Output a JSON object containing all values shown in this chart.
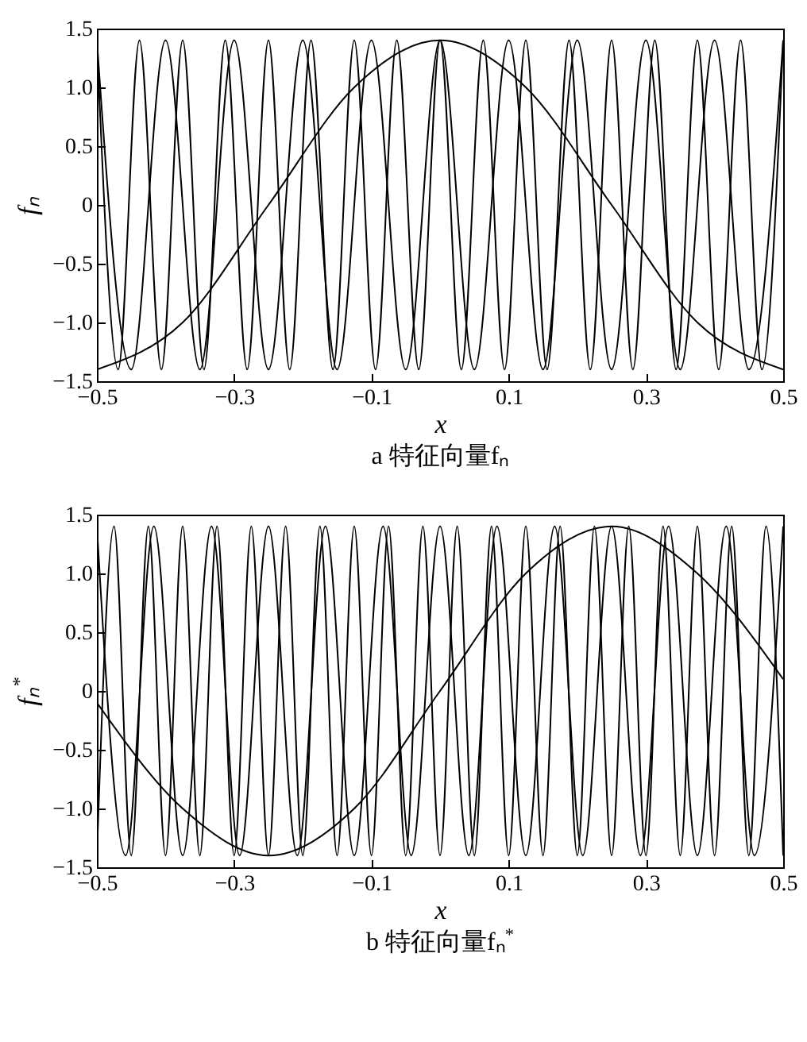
{
  "chart_data": [
    {
      "type": "line",
      "title": "a 特征向量fₙ",
      "xlabel": "x",
      "ylabel": "fₙ",
      "xlim": [
        -0.5,
        0.5
      ],
      "ylim": [
        -1.5,
        1.5
      ],
      "xticks": [
        {
          "value": -0.5,
          "label": "−0.5"
        },
        {
          "value": -0.3,
          "label": "−0.3"
        },
        {
          "value": -0.1,
          "label": "−0.1"
        },
        {
          "value": 0.1,
          "label": "0.1"
        },
        {
          "value": 0.3,
          "label": "0.3"
        },
        {
          "value": 0.5,
          "label": "0.5"
        }
      ],
      "yticks": [
        {
          "value": -1.5,
          "label": "−1.5"
        },
        {
          "value": -1,
          "label": "−1.0"
        },
        {
          "value": -0.5,
          "label": "−0.5"
        },
        0,
        {
          "value": 0.5,
          "label": "0.5"
        },
        {
          "value": 1,
          "label": "1.0"
        },
        {
          "value": 1.5,
          "label": "1.5"
        }
      ],
      "grid": false,
      "legend": false,
      "marker": "none",
      "line_style": "solid",
      "series": [
        {
          "color": "#000000",
          "x": [
            -0.5,
            -0.375,
            -0.25,
            -0.125,
            0,
            0.125,
            0.25,
            0.375,
            0.5
          ],
          "values": [
            -1.4,
            -1.0,
            0,
            1.0,
            1.4,
            1.0,
            0,
            -1.0,
            -1.4
          ]
        },
        {
          "color": "#000000",
          "x": [
            -0.5,
            -0.45,
            -0.4,
            -0.35,
            -0.3,
            -0.25,
            -0.2,
            -0.15,
            -0.1,
            -0.05,
            0,
            0.05,
            0.1,
            0.15,
            0.2,
            0.25,
            0.3,
            0.35,
            0.4,
            0.45,
            0.5
          ],
          "values": [
            1.4,
            -1.4,
            1.4,
            -1.4,
            1.4,
            -1.4,
            1.4,
            -1.4,
            1.4,
            -1.4,
            1.4,
            -1.4,
            1.4,
            -1.4,
            1.4,
            -1.4,
            1.4,
            -1.4,
            1.4,
            -1.4,
            1.4
          ]
        },
        {
          "color": "#000000",
          "x": [
            -0.5,
            -0.469,
            -0.438,
            -0.406,
            -0.375,
            -0.344,
            -0.313,
            -0.281,
            -0.25,
            -0.219,
            -0.188,
            -0.156,
            -0.125,
            -0.094,
            -0.063,
            -0.031,
            0,
            0.031,
            0.063,
            0.094,
            0.125,
            0.156,
            0.188,
            0.219,
            0.25,
            0.281,
            0.313,
            0.344,
            0.375,
            0.406,
            0.438,
            0.469,
            0.5
          ],
          "values": [
            1.4,
            -1.4,
            1.4,
            -1.4,
            1.4,
            -1.4,
            1.4,
            -1.4,
            1.4,
            -1.4,
            1.4,
            -1.4,
            1.4,
            -1.4,
            1.4,
            -1.4,
            1.4,
            -1.4,
            1.4,
            -1.4,
            1.4,
            -1.4,
            1.4,
            -1.4,
            1.4,
            -1.4,
            1.4,
            -1.4,
            1.4,
            -1.4,
            1.4,
            -1.4,
            1.4
          ]
        }
      ]
    },
    {
      "type": "line",
      "title": "b 特征向量fₙ$^{*}$",
      "xlabel": "x",
      "ylabel": "fₙ$^{*}$",
      "xlim": [
        -0.5,
        0.5
      ],
      "ylim": [
        -1.5,
        1.5
      ],
      "xticks": [
        {
          "value": -0.5,
          "label": "−0.5"
        },
        {
          "value": -0.3,
          "label": "−0.3"
        },
        {
          "value": -0.1,
          "label": "−0.1"
        },
        {
          "value": 0.1,
          "label": "0.1"
        },
        {
          "value": 0.3,
          "label": "0.3"
        },
        {
          "value": 0.5,
          "label": "0.5"
        }
      ],
      "yticks": [
        {
          "value": -1.5,
          "label": "−1.5"
        },
        {
          "value": -1,
          "label": "−1.0"
        },
        {
          "value": -0.5,
          "label": "−0.5"
        },
        0,
        {
          "value": 0.5,
          "label": "0.5"
        },
        {
          "value": 1,
          "label": "1.0"
        },
        {
          "value": 1.5,
          "label": "1.5"
        }
      ],
      "grid": false,
      "legend": false,
      "marker": "none",
      "line_style": "solid",
      "series": [
        {
          "color": "#000000",
          "x": [
            -0.5,
            -0.375,
            -0.25,
            -0.125,
            0,
            0.125,
            0.25,
            0.375,
            0.5
          ],
          "values": [
            -0.1,
            -1.0,
            -1.4,
            -1.0,
            0,
            1.0,
            1.4,
            1.0,
            0.1
          ]
        },
        {
          "color": "#000000",
          "x": [
            -0.5,
            -0.458,
            -0.417,
            -0.375,
            -0.333,
            -0.292,
            -0.25,
            -0.208,
            -0.167,
            -0.125,
            -0.083,
            -0.042,
            0,
            0.042,
            0.083,
            0.125,
            0.167,
            0.208,
            0.25,
            0.292,
            0.333,
            0.375,
            0.417,
            0.458,
            0.5
          ],
          "values": [
            1.4,
            -1.4,
            1.4,
            -1.4,
            1.4,
            -1.4,
            1.4,
            -1.4,
            1.4,
            -1.4,
            1.4,
            -1.4,
            1.4,
            -1.4,
            1.4,
            -1.4,
            1.4,
            -1.4,
            1.4,
            -1.4,
            1.4,
            -1.4,
            1.4,
            -1.4,
            1.4
          ]
        },
        {
          "color": "#000000",
          "x": [
            -0.5,
            -0.475,
            -0.45,
            -0.425,
            -0.4,
            -0.375,
            -0.35,
            -0.325,
            -0.3,
            -0.275,
            -0.25,
            -0.225,
            -0.2,
            -0.175,
            -0.15,
            -0.125,
            -0.1,
            -0.075,
            -0.05,
            -0.025,
            0,
            0.025,
            0.05,
            0.075,
            0.1,
            0.125,
            0.15,
            0.175,
            0.2,
            0.225,
            0.25,
            0.275,
            0.3,
            0.325,
            0.35,
            0.375,
            0.4,
            0.425,
            0.45,
            0.475,
            0.5
          ],
          "values": [
            -1.4,
            1.4,
            -1.4,
            1.4,
            -1.4,
            1.4,
            -1.4,
            1.4,
            -1.4,
            1.4,
            -1.4,
            1.4,
            -1.4,
            1.4,
            -1.4,
            1.4,
            -1.4,
            1.4,
            -1.4,
            1.4,
            -1.4,
            1.4,
            -1.4,
            1.4,
            -1.4,
            1.4,
            -1.4,
            1.4,
            -1.4,
            1.4,
            -1.4,
            1.4,
            -1.4,
            1.4,
            -1.4,
            1.4,
            -1.4,
            1.4,
            -1.4,
            1.4,
            -1.4
          ]
        }
      ]
    }
  ]
}
